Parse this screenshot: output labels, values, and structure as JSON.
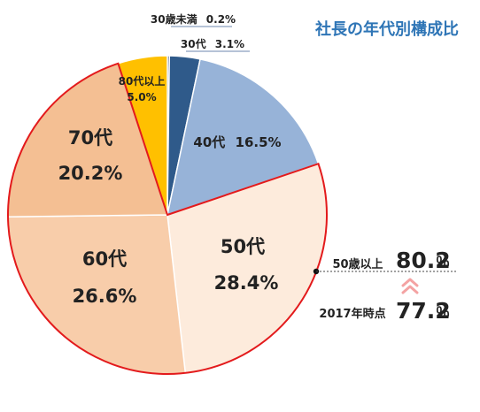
{
  "chart_data": {
    "type": "pie",
    "title": "社長の年代別構成比",
    "start_angle_deg": 90,
    "direction": "clockwise",
    "slices": [
      {
        "name": "30歳未満",
        "value": 0.2,
        "label": "0.2%",
        "color": "#1F3D75"
      },
      {
        "name": "30代",
        "value": 3.1,
        "label": "3.1%",
        "color": "#2F5A8A"
      },
      {
        "name": "40代",
        "value": 16.5,
        "label": "16.5%",
        "color": "#97B3D8"
      },
      {
        "name": "50代",
        "value": 28.4,
        "label": "28.4%",
        "color": "#FDEBDC"
      },
      {
        "name": "60代",
        "value": 26.6,
        "label": "26.6%",
        "color": "#F8CDAA"
      },
      {
        "name": "70代",
        "value": 20.2,
        "label": "20.2%",
        "color": "#F4BF93"
      },
      {
        "name": "80代以上",
        "value": 5.0,
        "label": "5.0%",
        "color": "#FFC000"
      }
    ],
    "highlight": {
      "group_label": "50歳以上",
      "group_value": "80.2",
      "group_unit": "％",
      "compare_label": "2017年時点",
      "compare_value": "77.2",
      "compare_unit": "％"
    }
  },
  "colors": {
    "title": "#2E75B6",
    "highlight_border": "#E31A1C",
    "separator": "#FFFFFF",
    "arrow": "#F4A3A3"
  }
}
